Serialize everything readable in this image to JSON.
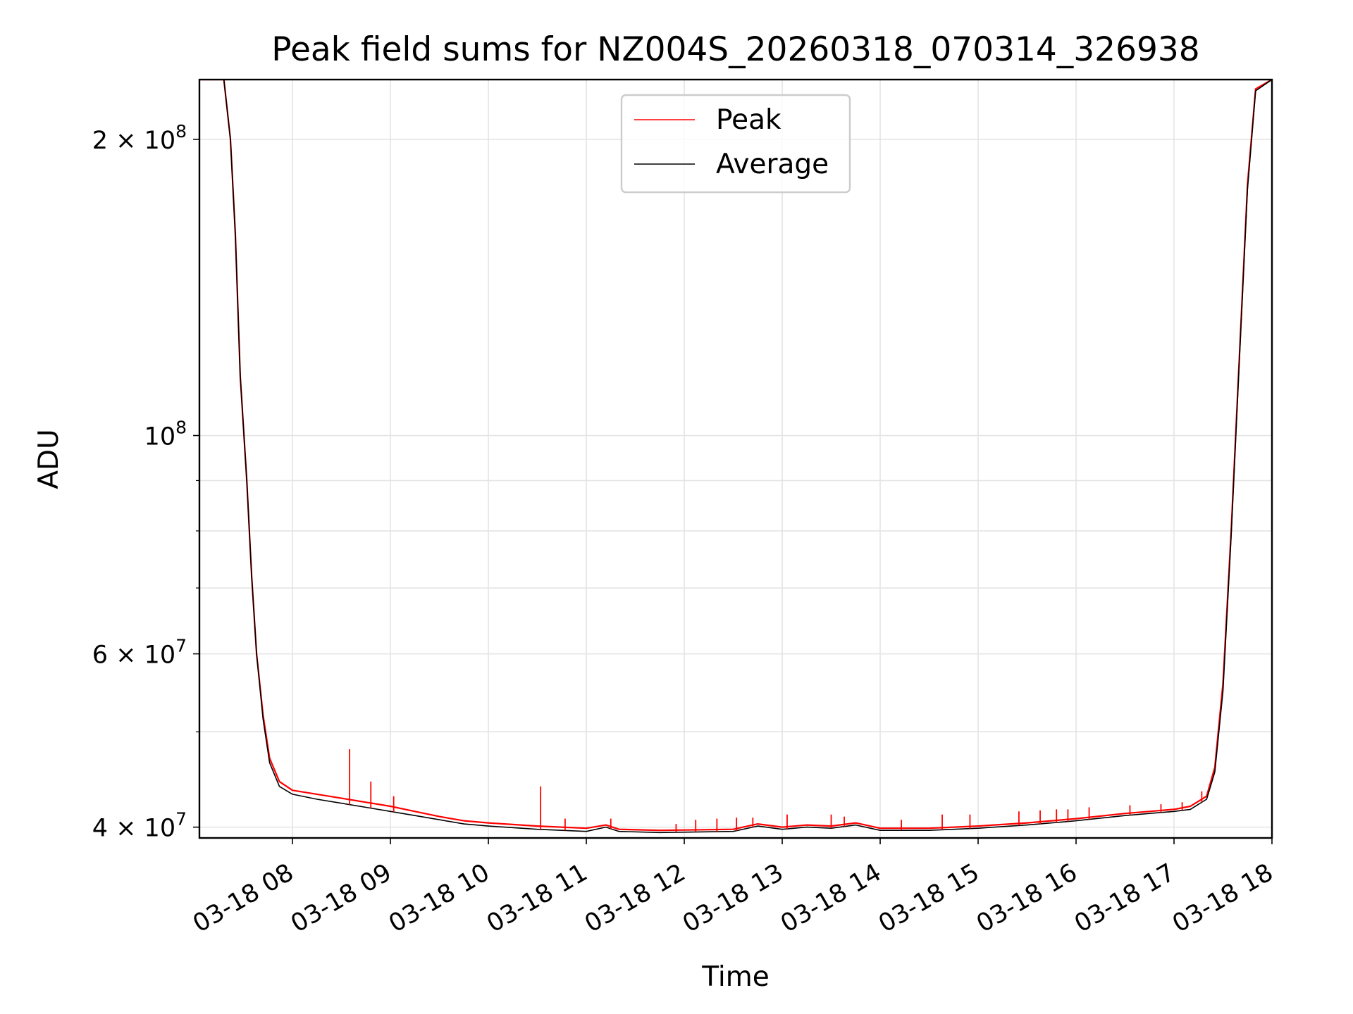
{
  "chart_data": {
    "type": "line",
    "title": "Peak field sums for NZ004S_20260318_070314_326938",
    "xlabel": "Time",
    "ylabel": "ADU",
    "x_ticks": [
      "03-18 08",
      "03-18 09",
      "03-18 10",
      "03-18 11",
      "03-18 12",
      "03-18 13",
      "03-18 14",
      "03-18 15",
      "03-18 16",
      "03-18 17",
      "03-18 18"
    ],
    "y_ticks": [
      {
        "value": 40000000,
        "base": "4 × 10",
        "exp": "7"
      },
      {
        "value": 60000000,
        "base": "6 × 10",
        "exp": "7"
      },
      {
        "value": 100000000,
        "base": "10",
        "exp": "8"
      },
      {
        "value": 200000000,
        "base": "2 × 10",
        "exp": "8"
      }
    ],
    "y_scale": "log",
    "ylim": [
      39000000,
      230000000
    ],
    "xlim": [
      "2026-03-18 07:03",
      "2026-03-18 18:00"
    ],
    "grid": true,
    "legend_position": "top-center",
    "series": [
      {
        "name": "Peak",
        "color": "#ff0000",
        "points": [
          [
            "2026-03-18 07:03",
            230000000
          ],
          [
            "2026-03-18 07:18",
            230000000
          ],
          [
            "2026-03-18 07:22",
            200000000
          ],
          [
            "2026-03-18 07:25",
            160000000
          ],
          [
            "2026-03-18 07:28",
            115000000
          ],
          [
            "2026-03-18 07:32",
            90000000
          ],
          [
            "2026-03-18 07:35",
            72000000
          ],
          [
            "2026-03-18 07:38",
            60000000
          ],
          [
            "2026-03-18 07:42",
            52000000
          ],
          [
            "2026-03-18 07:46",
            47000000
          ],
          [
            "2026-03-18 07:52",
            44500000
          ],
          [
            "2026-03-18 08:00",
            43600000
          ],
          [
            "2026-03-18 08:15",
            43200000
          ],
          [
            "2026-03-18 08:30",
            42800000
          ],
          [
            "2026-03-18 08:45",
            42400000
          ],
          [
            "2026-03-18 09:00",
            42000000
          ],
          [
            "2026-03-18 09:15",
            41500000
          ],
          [
            "2026-03-18 09:30",
            41000000
          ],
          [
            "2026-03-18 09:45",
            40600000
          ],
          [
            "2026-03-18 10:00",
            40400000
          ],
          [
            "2026-03-18 10:30",
            40100000
          ],
          [
            "2026-03-18 11:00",
            39900000
          ],
          [
            "2026-03-18 11:12",
            40200000
          ],
          [
            "2026-03-18 11:20",
            39800000
          ],
          [
            "2026-03-18 11:45",
            39700000
          ],
          [
            "2026-03-18 12:30",
            39800000
          ],
          [
            "2026-03-18 12:45",
            40300000
          ],
          [
            "2026-03-18 13:00",
            40000000
          ],
          [
            "2026-03-18 13:15",
            40200000
          ],
          [
            "2026-03-18 13:30",
            40100000
          ],
          [
            "2026-03-18 13:45",
            40400000
          ],
          [
            "2026-03-18 14:00",
            39900000
          ],
          [
            "2026-03-18 14:30",
            39900000
          ],
          [
            "2026-03-18 15:00",
            40100000
          ],
          [
            "2026-03-18 15:30",
            40400000
          ],
          [
            "2026-03-18 16:00",
            40800000
          ],
          [
            "2026-03-18 16:30",
            41300000
          ],
          [
            "2026-03-18 17:00",
            41700000
          ],
          [
            "2026-03-18 17:10",
            42000000
          ],
          [
            "2026-03-18 17:20",
            43000000
          ],
          [
            "2026-03-18 17:25",
            46000000
          ],
          [
            "2026-03-18 17:30",
            56000000
          ],
          [
            "2026-03-18 17:35",
            80000000
          ],
          [
            "2026-03-18 17:40",
            120000000
          ],
          [
            "2026-03-18 17:45",
            180000000
          ],
          [
            "2026-03-18 17:50",
            225000000
          ],
          [
            "2026-03-18 18:00",
            230000000
          ]
        ],
        "spikes": [
          [
            "2026-03-18 08:35",
            48000000
          ],
          [
            "2026-03-18 08:48",
            44500000
          ],
          [
            "2026-03-18 09:02",
            43000000
          ],
          [
            "2026-03-18 10:32",
            44000000
          ],
          [
            "2026-03-18 10:47",
            40800000
          ],
          [
            "2026-03-18 11:15",
            40800000
          ],
          [
            "2026-03-18 11:55",
            40300000
          ],
          [
            "2026-03-18 12:07",
            40700000
          ],
          [
            "2026-03-18 12:20",
            40800000
          ],
          [
            "2026-03-18 12:32",
            40900000
          ],
          [
            "2026-03-18 12:42",
            40900000
          ],
          [
            "2026-03-18 13:03",
            41200000
          ],
          [
            "2026-03-18 13:30",
            41200000
          ],
          [
            "2026-03-18 13:38",
            41000000
          ],
          [
            "2026-03-18 14:13",
            40700000
          ],
          [
            "2026-03-18 14:38",
            41200000
          ],
          [
            "2026-03-18 14:55",
            41200000
          ],
          [
            "2026-03-18 15:25",
            41500000
          ],
          [
            "2026-03-18 15:38",
            41600000
          ],
          [
            "2026-03-18 15:48",
            41700000
          ],
          [
            "2026-03-18 15:55",
            41700000
          ],
          [
            "2026-03-18 16:08",
            41900000
          ],
          [
            "2026-03-18 16:33",
            42100000
          ],
          [
            "2026-03-18 16:52",
            42200000
          ],
          [
            "2026-03-18 17:05",
            42400000
          ],
          [
            "2026-03-18 17:17",
            43500000
          ]
        ]
      },
      {
        "name": "Average",
        "color": "#000000",
        "points": [
          [
            "2026-03-18 07:03",
            230000000
          ],
          [
            "2026-03-18 07:18",
            230000000
          ],
          [
            "2026-03-18 07:22",
            200000000
          ],
          [
            "2026-03-18 07:25",
            160000000
          ],
          [
            "2026-03-18 07:28",
            115000000
          ],
          [
            "2026-03-18 07:32",
            90000000
          ],
          [
            "2026-03-18 07:35",
            72000000
          ],
          [
            "2026-03-18 07:38",
            60000000
          ],
          [
            "2026-03-18 07:42",
            51500000
          ],
          [
            "2026-03-18 07:46",
            46500000
          ],
          [
            "2026-03-18 07:52",
            44000000
          ],
          [
            "2026-03-18 08:00",
            43200000
          ],
          [
            "2026-03-18 08:15",
            42700000
          ],
          [
            "2026-03-18 08:30",
            42300000
          ],
          [
            "2026-03-18 08:45",
            41900000
          ],
          [
            "2026-03-18 09:00",
            41500000
          ],
          [
            "2026-03-18 09:15",
            41100000
          ],
          [
            "2026-03-18 09:30",
            40700000
          ],
          [
            "2026-03-18 09:45",
            40300000
          ],
          [
            "2026-03-18 10:00",
            40100000
          ],
          [
            "2026-03-18 10:30",
            39800000
          ],
          [
            "2026-03-18 11:00",
            39600000
          ],
          [
            "2026-03-18 11:12",
            40000000
          ],
          [
            "2026-03-18 11:20",
            39600000
          ],
          [
            "2026-03-18 11:45",
            39500000
          ],
          [
            "2026-03-18 12:30",
            39600000
          ],
          [
            "2026-03-18 12:45",
            40100000
          ],
          [
            "2026-03-18 13:00",
            39800000
          ],
          [
            "2026-03-18 13:15",
            40000000
          ],
          [
            "2026-03-18 13:30",
            39900000
          ],
          [
            "2026-03-18 13:45",
            40200000
          ],
          [
            "2026-03-18 14:00",
            39700000
          ],
          [
            "2026-03-18 14:30",
            39700000
          ],
          [
            "2026-03-18 15:00",
            39900000
          ],
          [
            "2026-03-18 15:30",
            40200000
          ],
          [
            "2026-03-18 16:00",
            40600000
          ],
          [
            "2026-03-18 16:30",
            41100000
          ],
          [
            "2026-03-18 17:00",
            41500000
          ],
          [
            "2026-03-18 17:10",
            41700000
          ],
          [
            "2026-03-18 17:20",
            42700000
          ],
          [
            "2026-03-18 17:25",
            45500000
          ],
          [
            "2026-03-18 17:30",
            55000000
          ],
          [
            "2026-03-18 17:35",
            79000000
          ],
          [
            "2026-03-18 17:40",
            119000000
          ],
          [
            "2026-03-18 17:45",
            178000000
          ],
          [
            "2026-03-18 17:50",
            224000000
          ],
          [
            "2026-03-18 18:00",
            230000000
          ]
        ]
      }
    ]
  }
}
